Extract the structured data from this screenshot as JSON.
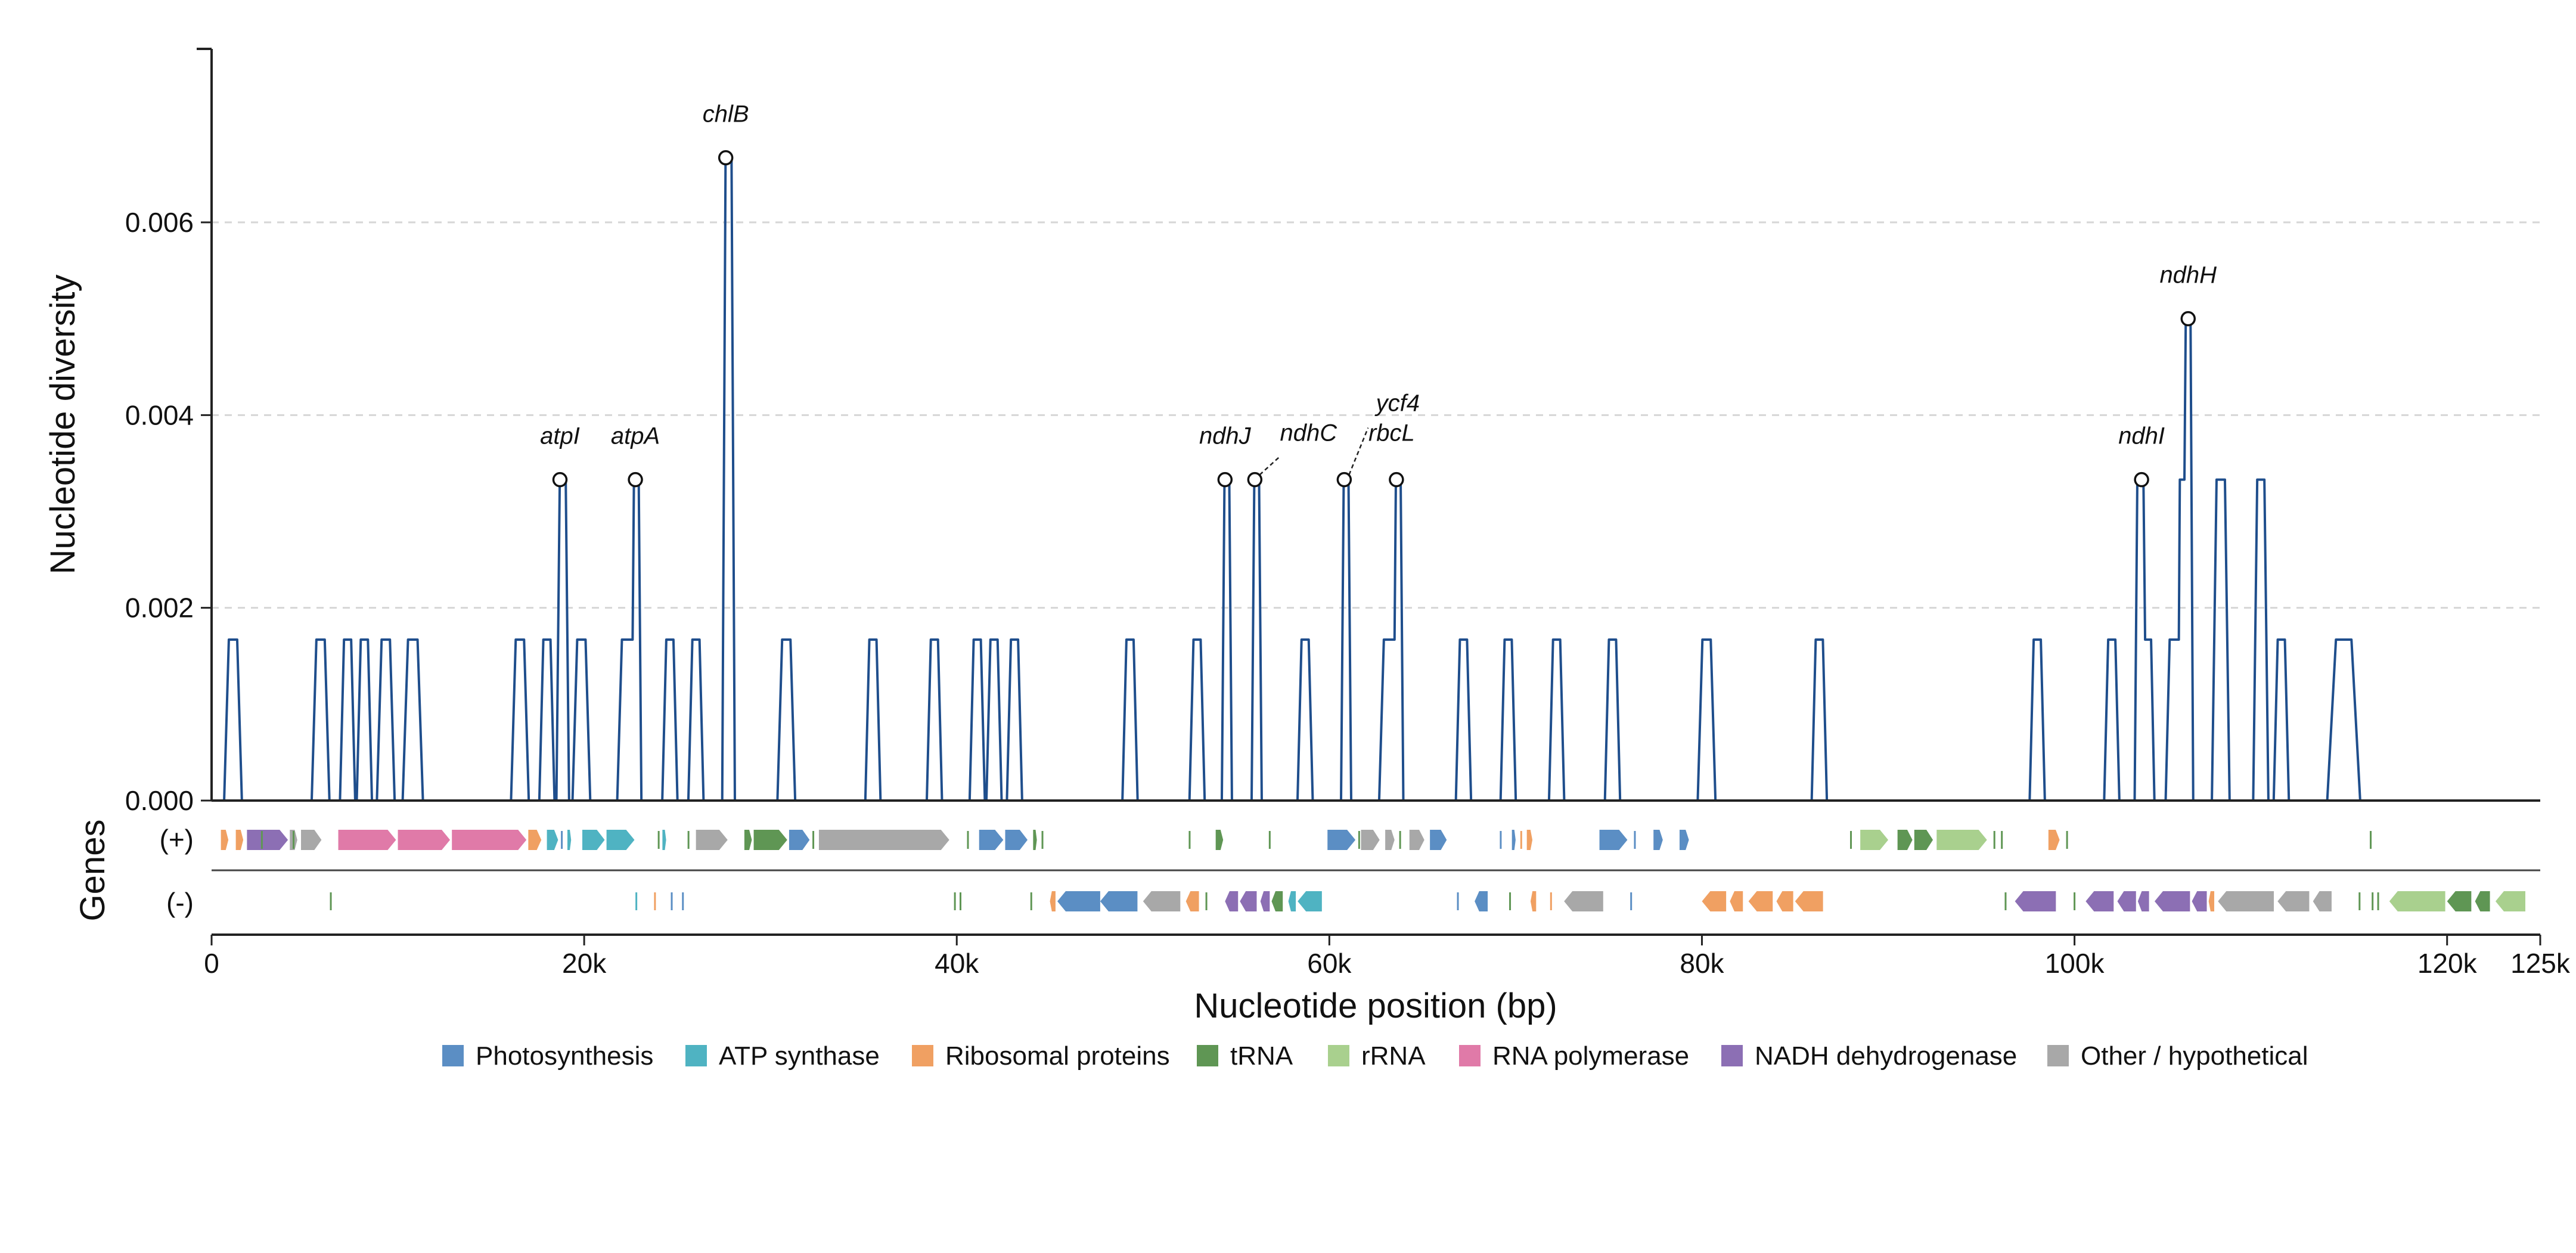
{
  "chart_data": {
    "type": "line",
    "xlabel": "Nucleotide position (bp)",
    "ylabel": "Nucleotide diversity",
    "track_label": "Genes",
    "strand_labels": [
      "(+)",
      "(-)"
    ],
    "xlim": [
      0,
      125000
    ],
    "ylim": [
      0,
      0.0078
    ],
    "x_ticks": [
      {
        "value": 0,
        "label": "0"
      },
      {
        "value": 20000,
        "label": "20k"
      },
      {
        "value": 40000,
        "label": "40k"
      },
      {
        "value": 60000,
        "label": "60k"
      },
      {
        "value": 80000,
        "label": "80k"
      },
      {
        "value": 100000,
        "label": "100k"
      },
      {
        "value": 120000,
        "label": "120k"
      },
      {
        "value": 125000,
        "label": "125k"
      }
    ],
    "y_ticks": [
      {
        "value": 0,
        "label": "0.000"
      },
      {
        "value": 0.002,
        "label": "0.002"
      },
      {
        "value": 0.004,
        "label": "0.004"
      },
      {
        "value": 0.006,
        "label": "0.006"
      }
    ],
    "grid": "horizontal dashed",
    "series": [
      {
        "color": "#1f4e8c",
        "windows": [
          [
            800,
            1500,
            0.00167
          ],
          [
            5500,
            6200,
            0.00167
          ],
          [
            7000,
            7600,
            0.00167
          ],
          [
            7900,
            8500,
            0.00167
          ],
          [
            9000,
            9700,
            0.00167
          ],
          [
            10400,
            11200,
            0.00167
          ],
          [
            16200,
            16900,
            0.00167
          ],
          [
            17700,
            18300,
            0.00167
          ],
          [
            18600,
            19100,
            0.00333
          ],
          [
            19500,
            20200,
            0.00167
          ],
          [
            21900,
            22600,
            0.00167
          ],
          [
            22600,
            23000,
            0.00333
          ],
          [
            24300,
            24900,
            0.00167
          ],
          [
            25700,
            26300,
            0.00167
          ],
          [
            27500,
            28000,
            0.00667
          ],
          [
            30500,
            31200,
            0.00167
          ],
          [
            35200,
            35800,
            0.00167
          ],
          [
            38500,
            39100,
            0.00167
          ],
          [
            40800,
            41400,
            0.00167
          ],
          [
            41700,
            42300,
            0.00167
          ],
          [
            42800,
            43400,
            0.00167
          ],
          [
            49000,
            49600,
            0.00167
          ],
          [
            52600,
            53200,
            0.00167
          ],
          [
            54300,
            54700,
            0.00333
          ],
          [
            55900,
            56300,
            0.00333
          ],
          [
            58400,
            59000,
            0.00167
          ],
          [
            60700,
            61100,
            0.00333
          ],
          [
            62800,
            63500,
            0.00167
          ],
          [
            63500,
            63900,
            0.00333
          ],
          [
            66900,
            67500,
            0.00167
          ],
          [
            69300,
            69900,
            0.00167
          ],
          [
            71900,
            72500,
            0.00167
          ],
          [
            74900,
            75500,
            0.00167
          ],
          [
            79900,
            80600,
            0.00167
          ],
          [
            86000,
            86600,
            0.00167
          ],
          [
            97700,
            98300,
            0.00167
          ],
          [
            101700,
            102300,
            0.00167
          ],
          [
            103300,
            103700,
            0.00333
          ],
          [
            103700,
            104200,
            0.00167
          ],
          [
            105000,
            105600,
            0.00167
          ],
          [
            105600,
            105900,
            0.00333
          ],
          [
            105900,
            106300,
            0.005
          ],
          [
            107500,
            108200,
            0.00333
          ],
          [
            109700,
            110300,
            0.00333
          ],
          [
            110800,
            111400,
            0.00167
          ],
          [
            113800,
            115100,
            0.00167
          ]
        ]
      }
    ],
    "peak_labels": [
      {
        "gene": "atpI",
        "x": 18700,
        "y": 0.00333
      },
      {
        "gene": "atpA",
        "x": 22750,
        "y": 0.00333
      },
      {
        "gene": "chlB",
        "x": 27600,
        "y": 0.00667
      },
      {
        "gene": "ndhJ",
        "x": 54400,
        "y": 0.00333
      },
      {
        "gene": "ndhC",
        "x": 56000,
        "y": 0.00333
      },
      {
        "gene": "ycf4",
        "x": 60800,
        "y": 0.00333
      },
      {
        "gene": "rbcL",
        "x": 63600,
        "y": 0.00333
      },
      {
        "gene": "ndhI",
        "x": 103600,
        "y": 0.00333
      },
      {
        "gene": "ndhH",
        "x": 106100,
        "y": 0.005
      }
    ],
    "genes": {
      "plus": [
        {
          "start": 500,
          "end": 900,
          "category": "Ribosomal proteins"
        },
        {
          "start": 1300,
          "end": 1700,
          "category": "Ribosomal proteins"
        },
        {
          "start": 1900,
          "end": 4100,
          "category": "NADH dehydrogenase"
        },
        {
          "start": 4200,
          "end": 4600,
          "category": "Other / hypothetical"
        },
        {
          "start": 4800,
          "end": 5900,
          "category": "Other / hypothetical"
        },
        {
          "start": 6800,
          "end": 9900,
          "category": "RNA polymerase"
        },
        {
          "start": 10000,
          "end": 12800,
          "category": "RNA polymerase"
        },
        {
          "start": 12900,
          "end": 16900,
          "category": "RNA polymerase"
        },
        {
          "start": 17000,
          "end": 17700,
          "category": "Ribosomal proteins"
        },
        {
          "start": 18000,
          "end": 18600,
          "category": "ATP synthase"
        },
        {
          "start": 19100,
          "end": 19300,
          "category": "ATP synthase"
        },
        {
          "start": 19900,
          "end": 21100,
          "category": "ATP synthase"
        },
        {
          "start": 21200,
          "end": 22700,
          "category": "ATP synthase"
        },
        {
          "start": 24200,
          "end": 24400,
          "category": "ATP synthase"
        },
        {
          "start": 26000,
          "end": 27700,
          "category": "Other / hypothetical"
        },
        {
          "start": 28600,
          "end": 29000,
          "category": "tRNA"
        },
        {
          "start": 29100,
          "end": 30900,
          "category": "tRNA"
        },
        {
          "start": 31000,
          "end": 32100,
          "category": "Photosynthesis"
        },
        {
          "start": 32600,
          "end": 39600,
          "category": "Other / hypothetical"
        },
        {
          "start": 41200,
          "end": 42500,
          "category": "Photosynthesis"
        },
        {
          "start": 42600,
          "end": 43800,
          "category": "Photosynthesis"
        },
        {
          "start": 44100,
          "end": 44300,
          "category": "tRNA"
        },
        {
          "start": 53900,
          "end": 54300,
          "category": "tRNA"
        },
        {
          "start": 59900,
          "end": 61400,
          "category": "Photosynthesis"
        },
        {
          "start": 61700,
          "end": 62700,
          "category": "Other / hypothetical"
        },
        {
          "start": 63000,
          "end": 63500,
          "category": "Other / hypothetical"
        },
        {
          "start": 64300,
          "end": 65100,
          "category": "Other / hypothetical"
        },
        {
          "start": 65400,
          "end": 66300,
          "category": "Photosynthesis"
        },
        {
          "start": 69800,
          "end": 70000,
          "category": "Photosynthesis"
        },
        {
          "start": 70600,
          "end": 70900,
          "category": "Ribosomal proteins"
        },
        {
          "start": 74500,
          "end": 76000,
          "category": "Photosynthesis"
        },
        {
          "start": 77400,
          "end": 77900,
          "category": "Photosynthesis"
        },
        {
          "start": 78800,
          "end": 79300,
          "category": "Photosynthesis"
        },
        {
          "start": 88500,
          "end": 90000,
          "category": "rRNA"
        },
        {
          "start": 90500,
          "end": 91300,
          "category": "tRNA"
        },
        {
          "start": 91400,
          "end": 92400,
          "category": "tRNA"
        },
        {
          "start": 92600,
          "end": 95300,
          "category": "rRNA"
        },
        {
          "start": 98600,
          "end": 99200,
          "category": "Ribosomal proteins"
        }
      ],
      "minus": [
        {
          "start": 45000,
          "end": 45300,
          "category": "Ribosomal proteins"
        },
        {
          "start": 45400,
          "end": 47700,
          "category": "Photosynthesis"
        },
        {
          "start": 47700,
          "end": 49700,
          "category": "Photosynthesis"
        },
        {
          "start": 50000,
          "end": 52000,
          "category": "Other / hypothetical"
        },
        {
          "start": 52300,
          "end": 53000,
          "category": "Ribosomal proteins"
        },
        {
          "start": 54400,
          "end": 55100,
          "category": "NADH dehydrogenase"
        },
        {
          "start": 55200,
          "end": 56100,
          "category": "NADH dehydrogenase"
        },
        {
          "start": 56300,
          "end": 56800,
          "category": "NADH dehydrogenase"
        },
        {
          "start": 56900,
          "end": 57500,
          "category": "tRNA"
        },
        {
          "start": 57800,
          "end": 58200,
          "category": "ATP synthase"
        },
        {
          "start": 58300,
          "end": 59600,
          "category": "ATP synthase"
        },
        {
          "start": 67800,
          "end": 68500,
          "category": "Photosynthesis"
        },
        {
          "start": 70800,
          "end": 71100,
          "category": "Ribosomal proteins"
        },
        {
          "start": 72600,
          "end": 74700,
          "category": "Other / hypothetical"
        },
        {
          "start": 80000,
          "end": 81300,
          "category": "Ribosomal proteins"
        },
        {
          "start": 81500,
          "end": 82200,
          "category": "Ribosomal proteins"
        },
        {
          "start": 82500,
          "end": 83800,
          "category": "Ribosomal proteins"
        },
        {
          "start": 84000,
          "end": 84900,
          "category": "Ribosomal proteins"
        },
        {
          "start": 85000,
          "end": 86500,
          "category": "Ribosomal proteins"
        },
        {
          "start": 96800,
          "end": 99000,
          "category": "NADH dehydrogenase"
        },
        {
          "start": 100600,
          "end": 102100,
          "category": "NADH dehydrogenase"
        },
        {
          "start": 102300,
          "end": 103300,
          "category": "NADH dehydrogenase"
        },
        {
          "start": 103400,
          "end": 104000,
          "category": "NADH dehydrogenase"
        },
        {
          "start": 104300,
          "end": 106200,
          "category": "NADH dehydrogenase"
        },
        {
          "start": 106300,
          "end": 107100,
          "category": "NADH dehydrogenase"
        },
        {
          "start": 107200,
          "end": 107500,
          "category": "Ribosomal proteins"
        },
        {
          "start": 107700,
          "end": 110700,
          "category": "Other / hypothetical"
        },
        {
          "start": 110900,
          "end": 112600,
          "category": "Other / hypothetical"
        },
        {
          "start": 112800,
          "end": 113800,
          "category": "Other / hypothetical"
        },
        {
          "start": 116900,
          "end": 119900,
          "category": "rRNA"
        },
        {
          "start": 120000,
          "end": 121300,
          "category": "tRNA"
        },
        {
          "start": 121500,
          "end": 122300,
          "category": "tRNA"
        },
        {
          "start": 122600,
          "end": 124200,
          "category": "rRNA"
        }
      ],
      "plus_ticks": [
        {
          "x": 2700,
          "category": "tRNA"
        },
        {
          "x": 4400,
          "category": "tRNA"
        },
        {
          "x": 18800,
          "category": "Photosynthesis"
        },
        {
          "x": 24000,
          "category": "tRNA"
        },
        {
          "x": 25600,
          "category": "tRNA"
        },
        {
          "x": 32300,
          "category": "tRNA"
        },
        {
          "x": 40600,
          "category": "tRNA"
        },
        {
          "x": 44600,
          "category": "tRNA"
        },
        {
          "x": 52500,
          "category": "tRNA"
        },
        {
          "x": 56800,
          "category": "tRNA"
        },
        {
          "x": 61600,
          "category": "tRNA"
        },
        {
          "x": 63800,
          "category": "tRNA"
        },
        {
          "x": 69200,
          "category": "Photosynthesis"
        },
        {
          "x": 70300,
          "category": "Ribosomal proteins"
        },
        {
          "x": 76400,
          "category": "Photosynthesis"
        },
        {
          "x": 88000,
          "category": "tRNA"
        },
        {
          "x": 95700,
          "category": "tRNA"
        },
        {
          "x": 96100,
          "category": "tRNA"
        },
        {
          "x": 99600,
          "category": "tRNA"
        },
        {
          "x": 115900,
          "category": "tRNA"
        }
      ],
      "minus_ticks": [
        {
          "x": 6400,
          "category": "tRNA"
        },
        {
          "x": 22800,
          "category": "ATP synthase"
        },
        {
          "x": 23800,
          "category": "Ribosomal proteins"
        },
        {
          "x": 24700,
          "category": "Photosynthesis"
        },
        {
          "x": 25300,
          "category": "Photosynthesis"
        },
        {
          "x": 39900,
          "category": "tRNA"
        },
        {
          "x": 40200,
          "category": "tRNA"
        },
        {
          "x": 44000,
          "category": "tRNA"
        },
        {
          "x": 53400,
          "category": "tRNA"
        },
        {
          "x": 66900,
          "category": "Photosynthesis"
        },
        {
          "x": 69700,
          "category": "tRNA"
        },
        {
          "x": 71900,
          "category": "Ribosomal proteins"
        },
        {
          "x": 76200,
          "category": "Photosynthesis"
        },
        {
          "x": 96300,
          "category": "tRNA"
        },
        {
          "x": 100000,
          "category": "tRNA"
        },
        {
          "x": 115300,
          "category": "tRNA"
        },
        {
          "x": 116000,
          "category": "tRNA"
        },
        {
          "x": 116300,
          "category": "tRNA"
        }
      ]
    },
    "categories": [
      {
        "name": "Photosynthesis",
        "color": "#5b8ec4"
      },
      {
        "name": "ATP synthase",
        "color": "#4fb3c2"
      },
      {
        "name": "Ribosomal proteins",
        "color": "#f0a062"
      },
      {
        "name": "tRNA",
        "color": "#5f9654"
      },
      {
        "name": "rRNA",
        "color": "#a9d08e"
      },
      {
        "name": "RNA polymerase",
        "color": "#e07aa8"
      },
      {
        "name": "NADH dehydrogenase",
        "color": "#8c6fb4"
      },
      {
        "name": "Other / hypothetical",
        "color": "#a8a8a8"
      }
    ],
    "legend": "bottom-center"
  }
}
